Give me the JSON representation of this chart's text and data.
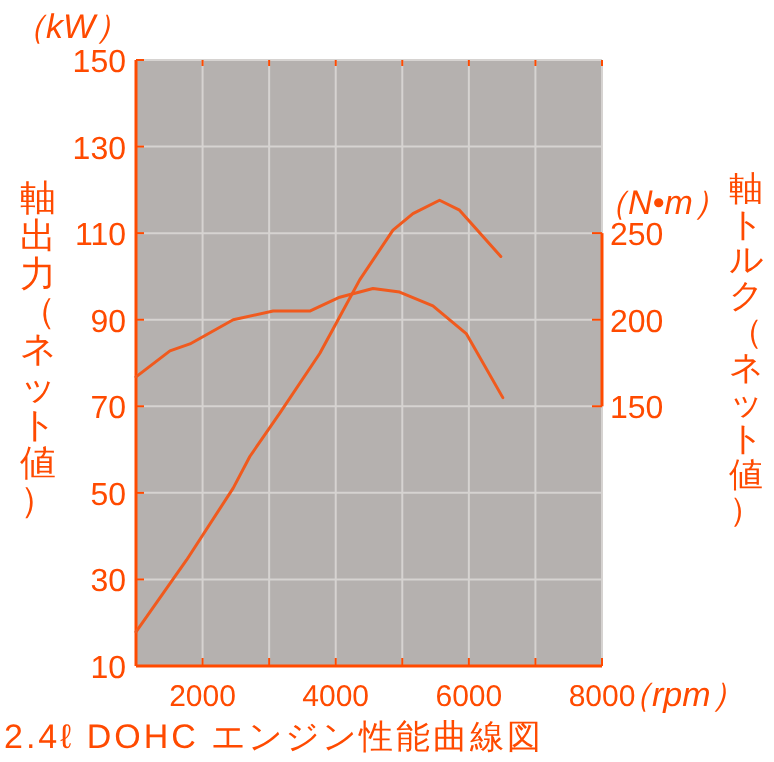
{
  "chart_data": {
    "type": "line",
    "title": "2.4ℓ DOHC エンジン性能曲線図",
    "xlabel": "（rpm）",
    "ylabel": "軸出力（ネット値）",
    "y2label": "軸トルク（ネット値）",
    "annotations": [
      "（kW）",
      "（N•m）"
    ],
    "xlim": [
      1000,
      8000
    ],
    "xticks": [
      {
        "value": 1000,
        "label": null
      },
      2000,
      {
        "value": 3000,
        "label": null
      },
      4000,
      {
        "value": 5000,
        "label": null
      },
      6000,
      {
        "value": 7000,
        "label": null
      },
      8000
    ],
    "ylim": [
      10,
      150
    ],
    "yticks": [
      10,
      30,
      50,
      70,
      90,
      110,
      130,
      150
    ],
    "y2lim": [
      0,
      350
    ],
    "y2ticks": [
      150,
      200,
      250
    ],
    "grid": true,
    "marker": "none",
    "line_style": "solid",
    "series": [
      {
        "color": "#f05a1e",
        "x": [
          1000,
          1760,
          2460,
          2710,
          3160,
          3760,
          4060,
          4360,
          4860,
          5160,
          5560,
          5860,
          6480
        ],
        "values": [
          17.9,
          34.5,
          51.1,
          58.4,
          68.4,
          82.2,
          90.7,
          99.2,
          110.7,
          114.5,
          117.6,
          115.3,
          104.6
        ]
      },
      {
        "color": "#f05a1e",
        "axis": "y2",
        "x": [
          1000,
          1510,
          1810,
          2460,
          3060,
          3610,
          4060,
          4560,
          4960,
          5460,
          5960,
          6510
        ],
        "values": [
          167,
          182,
          186,
          200,
          205,
          205,
          213,
          218,
          216,
          208,
          192,
          155
        ]
      }
    ]
  }
}
